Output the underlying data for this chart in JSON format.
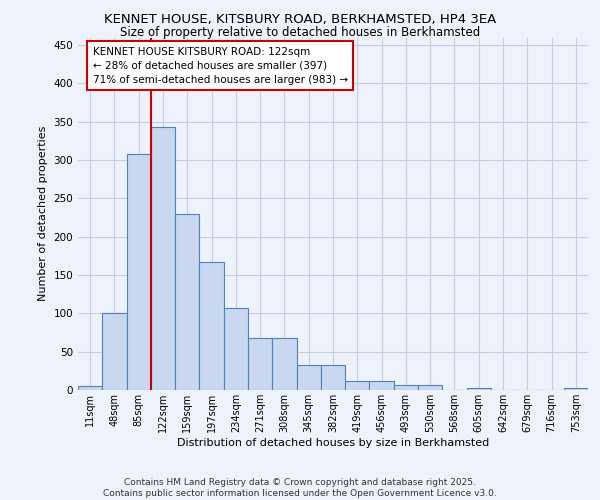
{
  "title": "KENNET HOUSE, KITSBURY ROAD, BERKHAMSTED, HP4 3EA",
  "subtitle": "Size of property relative to detached houses in Berkhamsted",
  "xlabel": "Distribution of detached houses by size in Berkhamsted",
  "ylabel": "Number of detached properties",
  "bar_labels": [
    "11sqm",
    "48sqm",
    "85sqm",
    "122sqm",
    "159sqm",
    "197sqm",
    "234sqm",
    "271sqm",
    "308sqm",
    "345sqm",
    "382sqm",
    "419sqm",
    "456sqm",
    "493sqm",
    "530sqm",
    "568sqm",
    "605sqm",
    "642sqm",
    "679sqm",
    "716sqm",
    "753sqm"
  ],
  "bar_values": [
    5,
    100,
    308,
    343,
    230,
    167,
    107,
    68,
    68,
    33,
    33,
    12,
    12,
    7,
    7,
    0,
    3,
    0,
    0,
    0,
    2
  ],
  "bar_color": "#c8d8ee",
  "bar_edge_color": "#5080c0",
  "ylim": [
    0,
    460
  ],
  "yticks": [
    0,
    50,
    100,
    150,
    200,
    250,
    300,
    350,
    400,
    450
  ],
  "vline_color": "#cc0000",
  "annotation_text": "KENNET HOUSE KITSBURY ROAD: 122sqm\n← 28% of detached houses are smaller (397)\n71% of semi-detached houses are larger (983) →",
  "annotation_box_color": "#ffffff",
  "annotation_box_edge_color": "#cc0000",
  "footer_text": "Contains HM Land Registry data © Crown copyright and database right 2025.\nContains public sector information licensed under the Open Government Licence v3.0.",
  "bg_color": "#eef2fb",
  "grid_color": "#c8cce0"
}
